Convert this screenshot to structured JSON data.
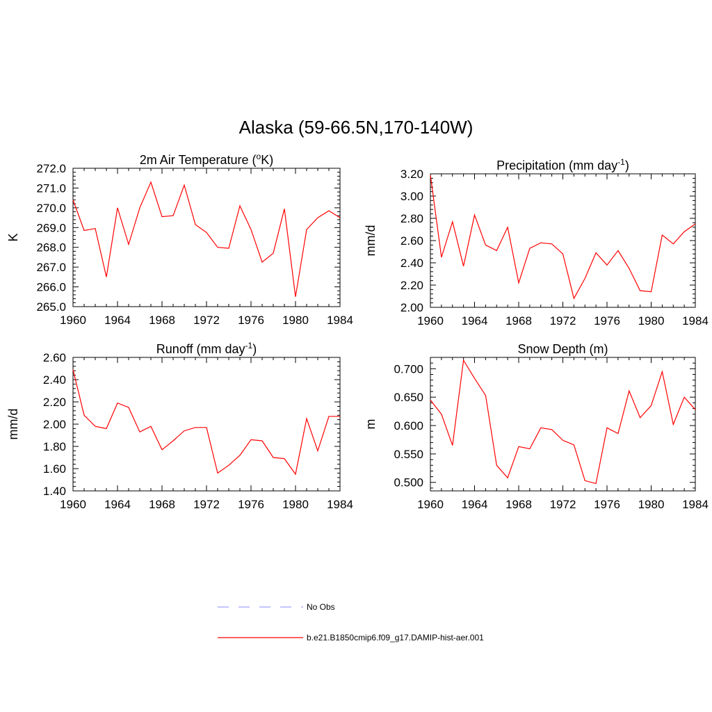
{
  "title": "Alaska (59-66.5N,170-140W)",
  "colors": {
    "series": "#ff0000",
    "obs": "#a0a0ff",
    "axis": "#000000"
  },
  "legend": [
    {
      "label": "No Obs",
      "style": "dashed",
      "color": "#a0a0ff"
    },
    {
      "label": "b.e21.B1850cmip6.f09_g17.DAMIP-hist-aer.001",
      "style": "solid",
      "color": "#ff0000"
    }
  ],
  "chart_data": [
    {
      "type": "line",
      "title_parts": [
        "2m Air Temperature (",
        "o",
        "K)"
      ],
      "title_sup_index": 1,
      "ylabel": "K",
      "x": [
        1960,
        1961,
        1962,
        1963,
        1964,
        1965,
        1966,
        1967,
        1968,
        1969,
        1970,
        1971,
        1972,
        1973,
        1974,
        1975,
        1976,
        1977,
        1978,
        1979,
        1980,
        1981,
        1982,
        1983,
        1984
      ],
      "values": [
        270.4,
        268.85,
        268.95,
        266.5,
        270.0,
        268.15,
        270.0,
        271.3,
        269.55,
        269.6,
        271.15,
        269.15,
        268.75,
        268.0,
        267.95,
        270.1,
        268.9,
        267.25,
        267.7,
        269.95,
        265.5,
        268.9,
        269.5,
        269.85,
        269.5
      ],
      "xlim": [
        1960,
        1984
      ],
      "ylim": [
        265.0,
        272.0
      ],
      "xticks": [
        "1960",
        "1964",
        "1968",
        "1972",
        "1976",
        "1980",
        "1984"
      ],
      "yticks": [
        "265.0",
        "266.0",
        "267.0",
        "268.0",
        "269.0",
        "270.0",
        "271.0",
        "272.0"
      ]
    },
    {
      "type": "line",
      "title_parts": [
        "Precipitation (mm day",
        "-1",
        ")"
      ],
      "title_sup_index": 1,
      "ylabel": "mm/d",
      "x": [
        1960,
        1961,
        1962,
        1963,
        1964,
        1965,
        1966,
        1967,
        1968,
        1969,
        1970,
        1971,
        1972,
        1973,
        1974,
        1975,
        1976,
        1977,
        1978,
        1979,
        1980,
        1981,
        1982,
        1983,
        1984
      ],
      "values": [
        3.19,
        2.45,
        2.77,
        2.37,
        2.83,
        2.56,
        2.51,
        2.72,
        2.22,
        2.53,
        2.58,
        2.57,
        2.48,
        2.08,
        2.26,
        2.49,
        2.38,
        2.51,
        2.35,
        2.15,
        2.14,
        2.65,
        2.57,
        2.68,
        2.75
      ],
      "xlim": [
        1960,
        1984
      ],
      "ylim": [
        2.0,
        3.2
      ],
      "xticks": [
        "1960",
        "1964",
        "1968",
        "1972",
        "1976",
        "1980",
        "1984"
      ],
      "yticks": [
        "2.00",
        "2.20",
        "2.40",
        "2.60",
        "2.80",
        "3.00",
        "3.20"
      ]
    },
    {
      "type": "line",
      "title_parts": [
        "Runoff (mm day",
        "-1",
        ")"
      ],
      "title_sup_index": 1,
      "ylabel": "mm/d",
      "x": [
        1960,
        1961,
        1962,
        1963,
        1964,
        1965,
        1966,
        1967,
        1968,
        1969,
        1970,
        1971,
        1972,
        1973,
        1974,
        1975,
        1976,
        1977,
        1978,
        1979,
        1980,
        1981,
        1982,
        1983,
        1984
      ],
      "values": [
        2.49,
        2.08,
        1.98,
        1.96,
        2.19,
        2.15,
        1.93,
        1.98,
        1.77,
        1.85,
        1.94,
        1.97,
        1.97,
        1.56,
        1.63,
        1.72,
        1.86,
        1.85,
        1.7,
        1.69,
        1.55,
        2.05,
        1.76,
        2.07,
        2.07
      ],
      "xlim": [
        1960,
        1984
      ],
      "ylim": [
        1.4,
        2.6
      ],
      "xticks": [
        "1960",
        "1964",
        "1968",
        "1972",
        "1976",
        "1980",
        "1984"
      ],
      "yticks": [
        "1.40",
        "1.60",
        "1.80",
        "2.00",
        "2.20",
        "2.40",
        "2.60"
      ]
    },
    {
      "type": "line",
      "title_parts": [
        "Snow Depth (m)"
      ],
      "title_sup_index": -1,
      "ylabel": "m",
      "x": [
        1960,
        1961,
        1962,
        1963,
        1964,
        1965,
        1966,
        1967,
        1968,
        1969,
        1970,
        1971,
        1972,
        1973,
        1974,
        1975,
        1976,
        1977,
        1978,
        1979,
        1980,
        1981,
        1982,
        1983,
        1984
      ],
      "values": [
        0.645,
        0.62,
        0.565,
        0.715,
        0.683,
        0.653,
        0.53,
        0.508,
        0.563,
        0.559,
        0.596,
        0.593,
        0.574,
        0.566,
        0.503,
        0.498,
        0.596,
        0.586,
        0.661,
        0.614,
        0.635,
        0.695,
        0.602,
        0.65,
        0.628
      ],
      "xlim": [
        1960,
        1984
      ],
      "ylim": [
        0.485,
        0.72
      ],
      "xticks": [
        "1960",
        "1964",
        "1968",
        "1972",
        "1976",
        "1980",
        "1984"
      ],
      "yticks": [
        "0.500",
        "0.550",
        "0.600",
        "0.650",
        "0.700"
      ],
      "ytick_values": [
        0.5,
        0.55,
        0.6,
        0.65,
        0.7
      ]
    }
  ]
}
